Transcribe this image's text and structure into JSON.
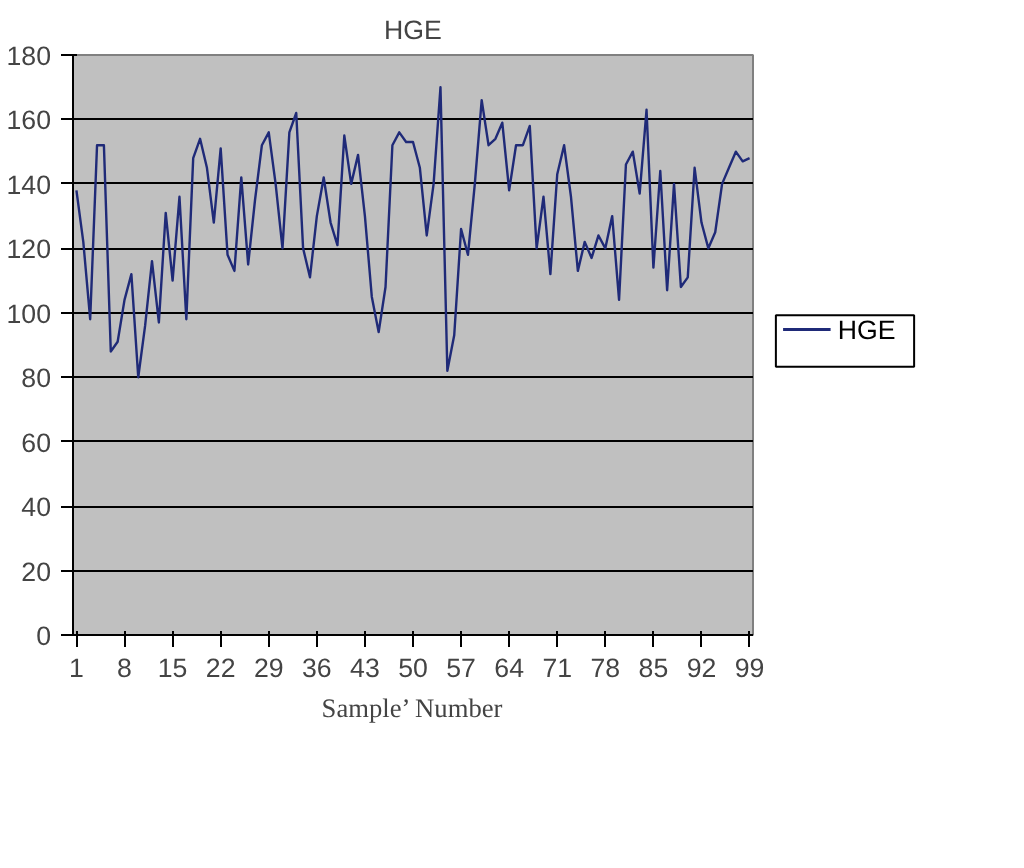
{
  "chart_data": {
    "type": "line",
    "title": "HGE",
    "xlabel": "Sample’ Number",
    "x": [
      1,
      2,
      3,
      4,
      5,
      6,
      7,
      8,
      9,
      10,
      11,
      12,
      13,
      14,
      15,
      16,
      17,
      18,
      19,
      20,
      21,
      22,
      23,
      24,
      25,
      26,
      27,
      28,
      29,
      30,
      31,
      32,
      33,
      34,
      35,
      36,
      37,
      38,
      39,
      40,
      41,
      42,
      43,
      44,
      45,
      46,
      47,
      48,
      49,
      50,
      51,
      52,
      53,
      54,
      55,
      56,
      57,
      58,
      59,
      60,
      61,
      62,
      63,
      64,
      65,
      66,
      67,
      68,
      69,
      70,
      71,
      72,
      73,
      74,
      75,
      76,
      77,
      78,
      79,
      80,
      81,
      82,
      83,
      84,
      85,
      86,
      87,
      88,
      89,
      90,
      91,
      92,
      93,
      94,
      95,
      96,
      97,
      98,
      99
    ],
    "series": [
      {
        "name": "HGE",
        "color": "#1f2a78",
        "values": [
          138,
          122,
          98,
          152,
          152,
          88,
          91,
          104,
          112,
          80,
          96,
          116,
          97,
          131,
          110,
          136,
          98,
          148,
          154,
          145,
          128,
          151,
          118,
          113,
          142,
          115,
          135,
          152,
          156,
          140,
          120,
          156,
          162,
          120,
          111,
          130,
          142,
          128,
          121,
          155,
          140,
          149,
          130,
          105,
          94,
          108,
          152,
          156,
          153,
          153,
          145,
          124,
          140,
          170,
          82,
          93,
          126,
          118,
          140,
          166,
          152,
          154,
          159,
          138,
          152,
          152,
          158,
          120,
          136,
          112,
          143,
          152,
          136,
          113,
          122,
          117,
          124,
          120,
          130,
          104,
          146,
          150,
          137,
          163,
          114,
          144,
          107,
          140,
          108,
          111,
          145,
          128,
          120,
          125,
          140,
          145,
          150,
          147,
          148
        ]
      }
    ],
    "xlim": [
      0.5,
      99.5
    ],
    "xticks": [
      1,
      8,
      15,
      22,
      29,
      36,
      43,
      50,
      57,
      64,
      71,
      78,
      85,
      92,
      99
    ],
    "ylim": [
      0,
      180
    ],
    "yticks": [
      0,
      20,
      40,
      60,
      80,
      100,
      120,
      140,
      160,
      180
    ],
    "grid": "y",
    "legend": "right",
    "marker": "none",
    "line_style": "solid"
  }
}
